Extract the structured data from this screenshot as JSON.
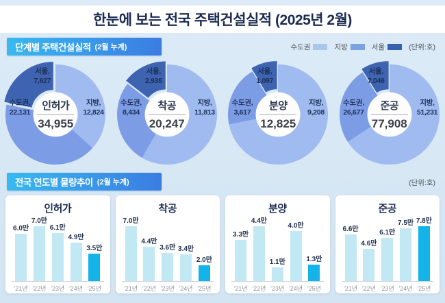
{
  "page": {
    "title": "한눈에 보는 전국 주택건설실적 (2025년 2월)"
  },
  "section_stage": {
    "badge_label": "단계별 주택건설실적",
    "badge_note": "(2월 누계)",
    "unit_label": "(단위:호)",
    "legend": [
      {
        "label": "수도권",
        "color": "#a9c7e9"
      },
      {
        "label": "지방",
        "color": "#7ba3dd"
      },
      {
        "label": "서울",
        "color": "#3561ae"
      }
    ]
  },
  "section_trend": {
    "badge_label": "전국 연도별 물량추이",
    "badge_note": "(2월 누계)",
    "unit_label": "(단위:호)"
  },
  "chart_data": {
    "donuts": [
      {
        "type": "pie",
        "title": "인허가",
        "total": 34955,
        "total_label": "34,955",
        "segments": [
          {
            "name": "jibang",
            "label": "지방,",
            "value": 12824,
            "value_label": "12,824",
            "draw_value": 12824,
            "color": "#9fbbf0",
            "side": "right"
          },
          {
            "name": "sudogwon",
            "label": "수도권,",
            "value": 22131,
            "value_label": "22,131",
            "draw_value": 14504,
            "color": "#7d9ce6",
            "side": "left"
          },
          {
            "name": "seoul",
            "label": "서울,",
            "value": 7627,
            "value_label": "7,627",
            "draw_value": 7627,
            "color": "#3e63b0",
            "side": "top",
            "explode": true
          }
        ]
      },
      {
        "type": "pie",
        "title": "착공",
        "total": 20247,
        "total_label": "20,247",
        "segments": [
          {
            "name": "jibang",
            "label": "지방,",
            "value": 11813,
            "value_label": "11,813",
            "draw_value": 11813,
            "color": "#9fbbf0",
            "side": "right"
          },
          {
            "name": "sudogwon",
            "label": "수도권,",
            "value": 8434,
            "value_label": "8,434",
            "draw_value": 5496,
            "color": "#7d9ce6",
            "side": "left"
          },
          {
            "name": "seoul",
            "label": "서울,",
            "value": 2938,
            "value_label": "2,938",
            "draw_value": 2938,
            "color": "#3e63b0",
            "side": "top",
            "explode": true
          }
        ]
      },
      {
        "type": "pie",
        "title": "분양",
        "total": 12825,
        "total_label": "12,825",
        "segments": [
          {
            "name": "jibang",
            "label": "지방,",
            "value": 9208,
            "value_label": "9,208",
            "draw_value": 9208,
            "color": "#9fbbf0",
            "side": "right"
          },
          {
            "name": "sudogwon",
            "label": "수도권,",
            "value": 3617,
            "value_label": "3,617",
            "draw_value": 2520,
            "color": "#7d9ce6",
            "side": "left"
          },
          {
            "name": "seoul",
            "label": "서울,",
            "value": 1097,
            "value_label": "1,097",
            "draw_value": 1097,
            "color": "#3e63b0",
            "side": "top",
            "explode": true
          }
        ]
      },
      {
        "type": "pie",
        "title": "준공",
        "total": 77908,
        "total_label": "77,908",
        "segments": [
          {
            "name": "jibang",
            "label": "지방,",
            "value": 51231,
            "value_label": "51,231",
            "draw_value": 51231,
            "color": "#9fbbf0",
            "side": "right"
          },
          {
            "name": "sudogwon",
            "label": "수도권,",
            "value": 26677,
            "value_label": "26,677",
            "draw_value": 19631,
            "color": "#7d9ce6",
            "side": "left"
          },
          {
            "name": "seoul",
            "label": "서울,",
            "value": 7046,
            "value_label": "7,046",
            "draw_value": 7046,
            "color": "#3e63b0",
            "side": "top",
            "explode": true
          }
        ]
      }
    ],
    "bars": [
      {
        "type": "bar",
        "title": "인허가",
        "categories": [
          "'21년",
          "'22년",
          "'23년",
          "'24년",
          "'25년"
        ],
        "values": [
          6.0,
          7.0,
          6.1,
          4.9,
          3.5
        ],
        "value_labels": [
          "6.0만",
          "7.0만",
          "6.1만",
          "4.9만",
          "3.5만"
        ],
        "bar_color": "#c2e9f3",
        "highlight_color": "#14b4ea",
        "highlight_index": 4
      },
      {
        "type": "bar",
        "title": "착공",
        "categories": [
          "'21년",
          "'22년",
          "'23년",
          "'24년",
          "'25년"
        ],
        "values": [
          7.0,
          4.4,
          3.6,
          3.4,
          2.0
        ],
        "value_labels": [
          "7.0만",
          "4.4만",
          "3.6만",
          "3.4만",
          "2.0만"
        ],
        "bar_color": "#c2e9f3",
        "highlight_color": "#14b4ea",
        "highlight_index": 4
      },
      {
        "type": "bar",
        "title": "분양",
        "categories": [
          "'21년",
          "'22년",
          "'23년",
          "'24년",
          "'25년"
        ],
        "values": [
          3.3,
          4.4,
          1.1,
          4.0,
          1.3
        ],
        "value_labels": [
          "3.3만",
          "4.4만",
          "1.1만",
          "4.0만",
          "1.3만"
        ],
        "bar_color": "#c2e9f3",
        "highlight_color": "#14b4ea",
        "highlight_index": 4
      },
      {
        "type": "bar",
        "title": "준공",
        "categories": [
          "'21년",
          "'22년",
          "'23년",
          "'24년",
          "'25년"
        ],
        "values": [
          6.6,
          4.6,
          6.1,
          7.5,
          7.8
        ],
        "value_labels": [
          "6.6만",
          "4.6만",
          "6.1만",
          "7.5만",
          "7.8만"
        ],
        "bar_color": "#c2e9f3",
        "highlight_color": "#14b4ea",
        "highlight_index": 4
      }
    ]
  }
}
